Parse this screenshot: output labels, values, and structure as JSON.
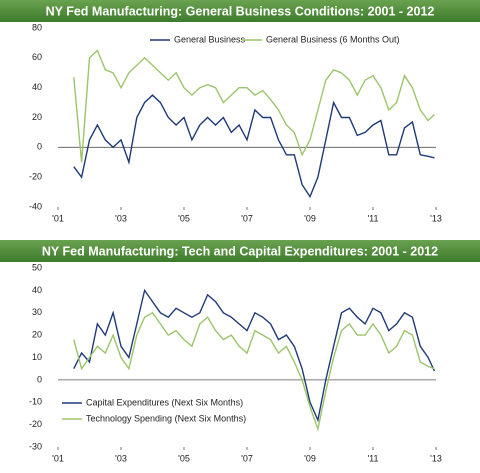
{
  "chart_data": [
    {
      "type": "line",
      "title": "NY Fed Manufacturing: General Business Conditions: 2001 - 2012",
      "x": [
        2001.5,
        2001.75,
        2002.0,
        2002.25,
        2002.5,
        2002.75,
        2003.0,
        2003.25,
        2003.5,
        2003.75,
        2004.0,
        2004.25,
        2004.5,
        2004.75,
        2005.0,
        2005.25,
        2005.5,
        2005.75,
        2006.0,
        2006.25,
        2006.5,
        2006.75,
        2007.0,
        2007.25,
        2007.5,
        2007.75,
        2008.0,
        2008.25,
        2008.5,
        2008.75,
        2009.0,
        2009.25,
        2009.5,
        2009.75,
        2010.0,
        2010.25,
        2010.5,
        2010.75,
        2011.0,
        2011.25,
        2011.5,
        2011.75,
        2012.0,
        2012.25,
        2012.5,
        2012.75,
        2012.95
      ],
      "series": [
        {
          "name": "General Business",
          "color": "#1f3a78",
          "values": [
            -13,
            -20,
            5,
            15,
            5,
            0,
            5,
            -10,
            20,
            30,
            35,
            30,
            20,
            15,
            20,
            5,
            15,
            20,
            15,
            20,
            10,
            15,
            5,
            25,
            20,
            20,
            5,
            -5,
            -5,
            -25,
            -33,
            -20,
            5,
            30,
            20,
            20,
            8,
            10,
            15,
            18,
            -5,
            -5,
            13,
            17,
            -5,
            -6,
            -7
          ]
        },
        {
          "name": "General Business (6 Months Out)",
          "color": "#9bc56a",
          "values": [
            47,
            -10,
            60,
            65,
            52,
            50,
            40,
            50,
            55,
            60,
            55,
            50,
            45,
            50,
            40,
            35,
            40,
            42,
            40,
            30,
            35,
            40,
            40,
            35,
            38,
            32,
            25,
            15,
            10,
            -5,
            5,
            25,
            45,
            52,
            50,
            45,
            35,
            45,
            48,
            40,
            25,
            30,
            48,
            40,
            25,
            18,
            22
          ]
        }
      ],
      "xlim": [
        2001,
        2013
      ],
      "xticks": [
        {
          "value": 2001,
          "label": "'01"
        },
        {
          "value": 2003,
          "label": "'03"
        },
        {
          "value": 2005,
          "label": "'05"
        },
        {
          "value": 2007,
          "label": "'07"
        },
        {
          "value": 2009,
          "label": "'09"
        },
        {
          "value": 2011,
          "label": "'11"
        },
        {
          "value": 2013,
          "label": "'13"
        }
      ],
      "ylim": [
        -40,
        80
      ],
      "yticks": [
        -40,
        -20,
        0,
        20,
        40,
        60,
        80
      ],
      "legend": "upper center"
    },
    {
      "type": "line",
      "title": "NY Fed Manufacturing: Tech and Capital Expenditures: 2001 - 2012",
      "x": [
        2001.5,
        2001.75,
        2002.0,
        2002.25,
        2002.5,
        2002.75,
        2003.0,
        2003.25,
        2003.5,
        2003.75,
        2004.0,
        2004.25,
        2004.5,
        2004.75,
        2005.0,
        2005.25,
        2005.5,
        2005.75,
        2006.0,
        2006.25,
        2006.5,
        2006.75,
        2007.0,
        2007.25,
        2007.5,
        2007.75,
        2008.0,
        2008.25,
        2008.5,
        2008.75,
        2009.0,
        2009.25,
        2009.5,
        2009.75,
        2010.0,
        2010.25,
        2010.5,
        2010.75,
        2011.0,
        2011.25,
        2011.5,
        2011.75,
        2012.0,
        2012.25,
        2012.5,
        2012.75,
        2012.95
      ],
      "series": [
        {
          "name": "Capital Expenditures (Next Six Months)",
          "color": "#1f3a78",
          "values": [
            5,
            12,
            8,
            25,
            20,
            30,
            15,
            10,
            25,
            40,
            35,
            30,
            28,
            32,
            30,
            28,
            30,
            38,
            35,
            30,
            28,
            25,
            22,
            30,
            28,
            25,
            18,
            20,
            15,
            5,
            -10,
            -18,
            0,
            15,
            30,
            32,
            28,
            25,
            32,
            30,
            22,
            25,
            30,
            28,
            15,
            10,
            4
          ]
        },
        {
          "name": "Technology Spending (Next Six Months)",
          "color": "#9bc56a",
          "values": [
            18,
            5,
            10,
            15,
            12,
            20,
            10,
            5,
            20,
            28,
            30,
            25,
            20,
            22,
            18,
            15,
            25,
            28,
            22,
            18,
            20,
            15,
            12,
            22,
            20,
            18,
            12,
            15,
            8,
            0,
            -12,
            -22,
            -5,
            10,
            22,
            25,
            20,
            20,
            25,
            20,
            12,
            15,
            22,
            20,
            8,
            6,
            5
          ]
        }
      ],
      "xlim": [
        2001,
        2013
      ],
      "xticks": [
        {
          "value": 2001,
          "label": "'01"
        },
        {
          "value": 2003,
          "label": "'03"
        },
        {
          "value": 2005,
          "label": "'05"
        },
        {
          "value": 2007,
          "label": "'07"
        },
        {
          "value": 2009,
          "label": "'09"
        },
        {
          "value": 2011,
          "label": "'11"
        },
        {
          "value": 2013,
          "label": "'13"
        }
      ],
      "ylim": [
        -30,
        50
      ],
      "yticks": [
        -30,
        -20,
        -10,
        0,
        10,
        20,
        30,
        40,
        50
      ],
      "legend": "lower left"
    }
  ]
}
